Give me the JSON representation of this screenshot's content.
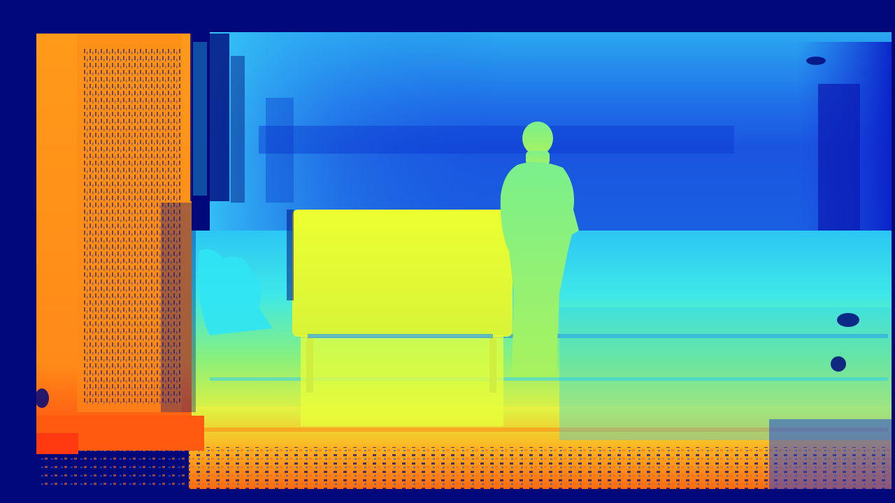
{
  "image": {
    "kind": "depth-map",
    "colormap": "jet",
    "palette": {
      "background": "#00087a",
      "far": "#0a2fd8",
      "mid_far": "#1f7ef0",
      "mid": "#2fd0f5",
      "mid_near": "#7ef08a",
      "near": "#e8ff3a",
      "nearer": "#ffb020",
      "nearest": "#ff5a10"
    },
    "regions": [
      {
        "name": "back-wall",
        "depth": "far"
      },
      {
        "name": "left-pillar",
        "depth": "nearer"
      },
      {
        "name": "bench",
        "depth": "near"
      },
      {
        "name": "person",
        "depth": "mid-near"
      },
      {
        "name": "floor",
        "depth": "gradient"
      },
      {
        "name": "right-edge-shadow",
        "depth": "far"
      }
    ]
  }
}
